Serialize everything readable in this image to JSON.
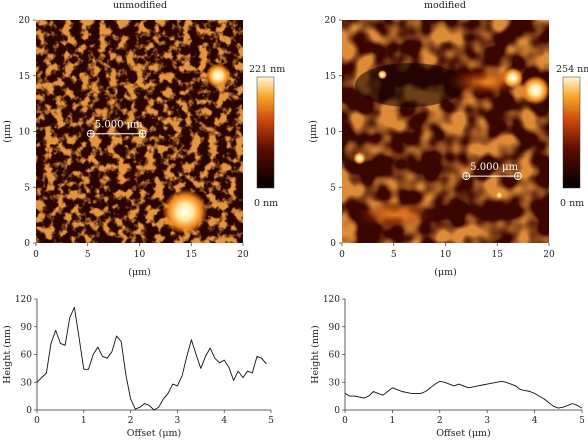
{
  "chart_data": [
    {
      "type": "heatmap",
      "panel": "top-left",
      "title": "unmodified",
      "xlabel": "(μm)",
      "ylabel": "(μm)",
      "xlim": [
        0,
        20
      ],
      "ylim": [
        0,
        20
      ],
      "xticks": [
        "0",
        "5",
        "10",
        "15",
        "20"
      ],
      "yticks": [
        "0",
        "5",
        "10",
        "15",
        "20"
      ],
      "colorbar": {
        "max_label": "221 nm",
        "min_label": "0 nm"
      },
      "scale_bar": {
        "label": "5.000 μm",
        "x_start": 5.3,
        "x_end": 10.3,
        "y": 9.8
      },
      "bright_features": [
        {
          "x": 17.6,
          "y": 15.0,
          "r": 1.2
        },
        {
          "x": 14.4,
          "y": 2.8,
          "r": 2.2
        }
      ]
    },
    {
      "type": "heatmap",
      "panel": "top-right",
      "title": "modified",
      "xlabel": "(μm)",
      "ylabel": "(μm)",
      "xlim": [
        0,
        20
      ],
      "ylim": [
        0,
        20
      ],
      "xticks": [
        "0",
        "5",
        "10",
        "15",
        "20"
      ],
      "yticks": [
        "0",
        "5",
        "10",
        "15",
        "20"
      ],
      "colorbar": {
        "max_label": "254 nm",
        "min_label": "0 nm"
      },
      "scale_bar": {
        "label": "5.000 μm",
        "x_start": 12.0,
        "x_end": 17.0,
        "y": 6.0
      },
      "bright_features": [
        {
          "x": 1.7,
          "y": 7.6,
          "r": 0.6
        },
        {
          "x": 3.9,
          "y": 15.1,
          "r": 0.45
        },
        {
          "x": 15.2,
          "y": 4.3,
          "r": 0.4
        },
        {
          "x": 18.7,
          "y": 13.7,
          "r": 1.4
        },
        {
          "x": 16.5,
          "y": 14.8,
          "r": 1.0
        }
      ]
    },
    {
      "type": "line",
      "panel": "bottom-left",
      "xlabel": "Offset (μm)",
      "ylabel": "Height (nm)",
      "xlim": [
        0,
        5
      ],
      "ylim": [
        0,
        120
      ],
      "xticks": [
        "0",
        "1",
        "2",
        "3",
        "4",
        "5"
      ],
      "yticks": [
        "0",
        "30",
        "60",
        "90",
        "120"
      ],
      "x": [
        0.0,
        0.1,
        0.2,
        0.3,
        0.4,
        0.5,
        0.6,
        0.7,
        0.8,
        0.9,
        1.0,
        1.1,
        1.2,
        1.3,
        1.4,
        1.5,
        1.6,
        1.7,
        1.8,
        1.9,
        2.0,
        2.1,
        2.2,
        2.3,
        2.4,
        2.5,
        2.6,
        2.7,
        2.8,
        2.9,
        3.0,
        3.1,
        3.2,
        3.3,
        3.4,
        3.5,
        3.6,
        3.7,
        3.8,
        3.9,
        4.0,
        4.1,
        4.2,
        4.3,
        4.4,
        4.5,
        4.6,
        4.7,
        4.8,
        4.9
      ],
      "y": [
        30,
        35,
        40,
        72,
        86,
        72,
        70,
        100,
        111,
        78,
        44,
        44,
        60,
        68,
        58,
        56,
        63,
        80,
        74,
        38,
        12,
        1,
        3,
        7,
        5,
        0,
        3,
        12,
        18,
        28,
        26,
        37,
        58,
        76,
        60,
        45,
        58,
        67,
        56,
        51,
        54,
        46,
        32,
        42,
        35,
        42,
        40,
        58,
        56,
        50
      ]
    },
    {
      "type": "line",
      "panel": "bottom-right",
      "xlabel": "Offset (μm)",
      "ylabel": "Height (nm)",
      "xlim": [
        0,
        5
      ],
      "ylim": [
        0,
        120
      ],
      "xticks": [
        "0",
        "1",
        "2",
        "3",
        "4",
        "5"
      ],
      "yticks": [
        "0",
        "30",
        "60",
        "90",
        "120"
      ],
      "x": [
        0.0,
        0.1,
        0.2,
        0.3,
        0.4,
        0.5,
        0.6,
        0.7,
        0.8,
        0.9,
        1.0,
        1.1,
        1.2,
        1.3,
        1.4,
        1.5,
        1.6,
        1.7,
        1.8,
        1.9,
        2.0,
        2.1,
        2.2,
        2.3,
        2.4,
        2.5,
        2.6,
        2.7,
        2.8,
        2.9,
        3.0,
        3.1,
        3.2,
        3.3,
        3.4,
        3.5,
        3.6,
        3.7,
        3.8,
        3.9,
        4.0,
        4.1,
        4.2,
        4.3,
        4.4,
        4.5,
        4.6,
        4.7,
        4.8,
        4.9,
        5.0
      ],
      "y": [
        18,
        15,
        15,
        14,
        13,
        15,
        20,
        18,
        16,
        20,
        24,
        22,
        20,
        19,
        18,
        18,
        18,
        20,
        24,
        28,
        31,
        30,
        28,
        26,
        28,
        26,
        24,
        25,
        26,
        27,
        28,
        29,
        30,
        31,
        30,
        28,
        26,
        22,
        21,
        20,
        18,
        15,
        12,
        8,
        4,
        2,
        3,
        5,
        7,
        5,
        2
      ]
    }
  ]
}
